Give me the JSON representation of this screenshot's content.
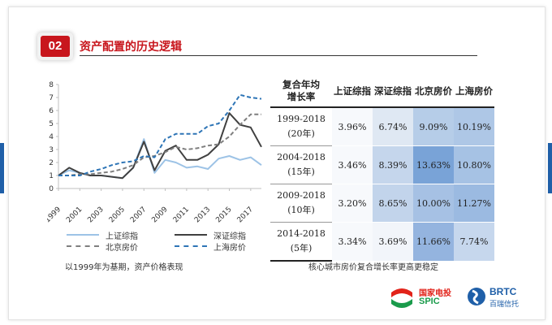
{
  "section": {
    "number": "02",
    "title": "资产配置的历史逻辑"
  },
  "chart_data": {
    "type": "line",
    "x": [
      1999,
      2000,
      2001,
      2002,
      2003,
      2004,
      2005,
      2006,
      2007,
      2008,
      2009,
      2010,
      2011,
      2012,
      2013,
      2014,
      2015,
      2016,
      2017,
      2018
    ],
    "xticks": [
      "1999",
      "2001",
      "2003",
      "2005",
      "2007",
      "2009",
      "2011",
      "2013",
      "2015",
      "2017"
    ],
    "ylim": [
      0,
      8
    ],
    "yticks": [
      "0",
      "1",
      "2",
      "3",
      "4",
      "5",
      "6",
      "7",
      "8"
    ],
    "series": [
      {
        "name": "上证综指",
        "color": "#9dc3e6",
        "dash": "solid",
        "values": [
          1,
          1.4,
          1.2,
          1.0,
          1.0,
          0.9,
          0.8,
          1.6,
          3.8,
          1.2,
          2.2,
          2.0,
          1.6,
          1.7,
          1.5,
          2.3,
          2.5,
          2.2,
          2.4,
          1.8
        ]
      },
      {
        "name": "深证综指",
        "color": "#404040",
        "dash": "solid",
        "values": [
          1,
          1.6,
          1.2,
          1.0,
          1.0,
          0.9,
          0.8,
          1.6,
          3.6,
          1.4,
          2.9,
          3.3,
          2.2,
          2.2,
          2.6,
          3.4,
          5.8,
          4.9,
          4.7,
          3.2
        ]
      },
      {
        "name": "北京房价",
        "color": "#7f7f7f",
        "dash": "dashed",
        "values": [
          1,
          1.0,
          1.1,
          1.1,
          1.2,
          1.3,
          1.5,
          1.8,
          2.4,
          2.5,
          2.8,
          3.2,
          3.0,
          3.1,
          3.3,
          3.4,
          4.0,
          4.9,
          5.7,
          5.7
        ]
      },
      {
        "name": "上海房价",
        "color": "#2e75b6",
        "dash": "dashed",
        "values": [
          1,
          1.0,
          1.0,
          1.3,
          1.5,
          1.8,
          2.0,
          2.1,
          2.5,
          2.4,
          3.8,
          4.2,
          4.2,
          4.2,
          4.8,
          5.0,
          6.0,
          7.2,
          7.0,
          6.9
        ]
      }
    ]
  },
  "caption_left": "以1999年为基期，资产价格表现",
  "caption_right": "核心城市房价复合增长率更高更稳定",
  "table": {
    "header": [
      "复合年均",
      "增长率",
      "上证综指",
      "深证综指",
      "北京房价",
      "上海房价"
    ],
    "rows": [
      {
        "period": "1999-2018",
        "years": "(20年)",
        "values": [
          "3.96%",
          "6.74%",
          "9.09%",
          "10.19%"
        ]
      },
      {
        "period": "2004-2018",
        "years": "(15年)",
        "values": [
          "3.46%",
          "8.39%",
          "13.63%",
          "10.80%"
        ]
      },
      {
        "period": "2009-2018",
        "years": "(10年)",
        "values": [
          "3.20%",
          "8.65%",
          "10.00%",
          "11.27%"
        ]
      },
      {
        "period": "2014-2018",
        "years": "(5年)",
        "values": [
          "3.34%",
          "3.69%",
          "11.66%",
          "7.74%"
        ]
      }
    ],
    "colors": [
      [
        "#f7f9fc",
        "#dfe8f3",
        "#b6cde8",
        "#aec7e6"
      ],
      [
        "#f7f9fc",
        "#c5d6ec",
        "#79a3d7",
        "#a6c2e4"
      ],
      [
        "#f7f9fc",
        "#c2d4eb",
        "#a6c1e4",
        "#9bbae1"
      ],
      [
        "#f7f9fc",
        "#f2f5fa",
        "#94b4df",
        "#c6d7ed"
      ]
    ]
  },
  "logos": {
    "spic_cn": "国家电投",
    "spic_en": "SPIC",
    "brtc_en": "BRTC",
    "brtc_cn": "百瑞信托"
  }
}
